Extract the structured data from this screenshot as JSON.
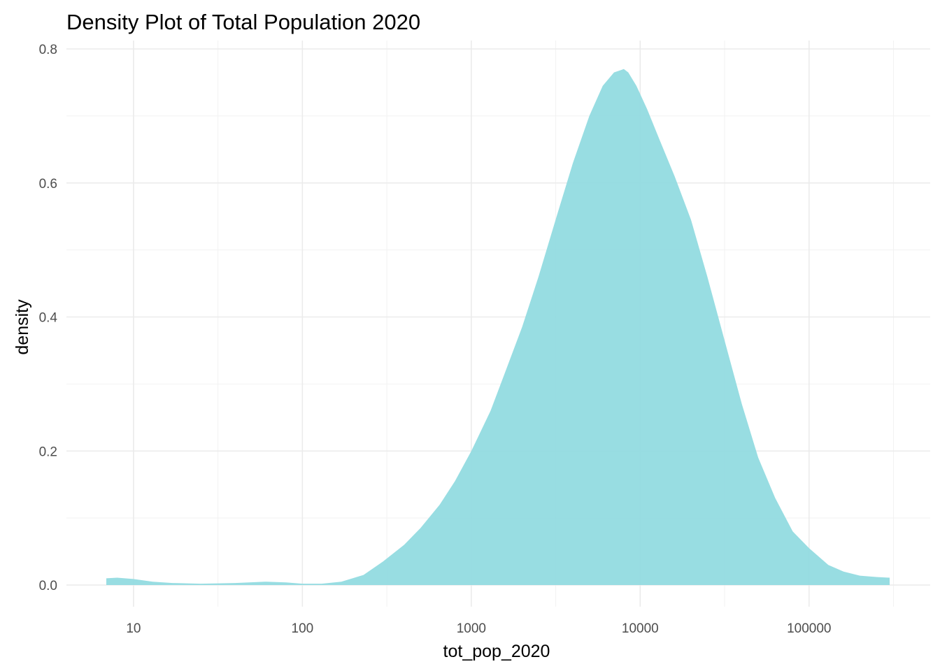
{
  "chart_data": {
    "type": "area",
    "title": "Density Plot of Total Population 2020",
    "xlabel": "tot_pop_2020",
    "ylabel": "density",
    "x_scale": "log10",
    "xlim": [
      6.9,
      300000
    ],
    "ylim": [
      0,
      0.8
    ],
    "x_ticks": [
      10,
      100,
      1000,
      10000,
      100000
    ],
    "x_tick_labels": [
      "10",
      "100",
      "1000",
      "10000",
      "100000"
    ],
    "y_ticks": [
      0,
      0.2,
      0.4,
      0.6,
      0.8
    ],
    "y_tick_labels": [
      "0.0",
      "0.2",
      "0.4",
      "0.6",
      "0.8"
    ],
    "grid": true,
    "fill_color": "#8fdadf",
    "series": [
      {
        "x": [
          6.9,
          8,
          10,
          13,
          17,
          25,
          40,
          60,
          80,
          100,
          130,
          170,
          230,
          300,
          400,
          500,
          650,
          800,
          1000,
          1300,
          1600,
          2000,
          2500,
          3200,
          4000,
          5000,
          6000,
          7000,
          8000,
          8500,
          9500,
          11000,
          13000,
          16000,
          20000,
          25000,
          32000,
          40000,
          50000,
          63000,
          80000,
          100000,
          130000,
          160000,
          200000,
          250000,
          300000
        ],
        "y": [
          0.01,
          0.011,
          0.009,
          0.005,
          0.003,
          0.002,
          0.003,
          0.005,
          0.004,
          0.002,
          0.002,
          0.005,
          0.015,
          0.035,
          0.06,
          0.085,
          0.12,
          0.155,
          0.2,
          0.26,
          0.32,
          0.385,
          0.46,
          0.55,
          0.63,
          0.7,
          0.745,
          0.765,
          0.77,
          0.765,
          0.745,
          0.71,
          0.665,
          0.61,
          0.545,
          0.46,
          0.36,
          0.27,
          0.19,
          0.13,
          0.08,
          0.055,
          0.03,
          0.02,
          0.014,
          0.012,
          0.011
        ]
      }
    ]
  }
}
